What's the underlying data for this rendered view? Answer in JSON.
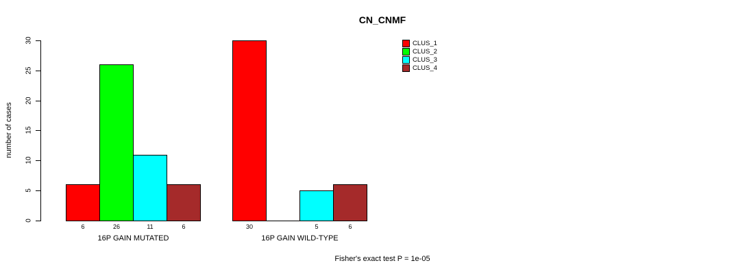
{
  "chart_data": {
    "type": "bar",
    "title": "CN_CNMF",
    "ylabel": "number of cases",
    "xlabel": "",
    "ylim": [
      0,
      30
    ],
    "yticks": [
      "0",
      "5",
      "10",
      "15",
      "20",
      "25",
      "30"
    ],
    "categories": [
      "16P GAIN MUTATED",
      "16P GAIN WILD-TYPE"
    ],
    "series": [
      {
        "name": "CLUS_1",
        "color": "#ff0000",
        "values": [
          6,
          30
        ]
      },
      {
        "name": "CLUS_2",
        "color": "#00ff00",
        "values": [
          26,
          0
        ]
      },
      {
        "name": "CLUS_3",
        "color": "#00ffff",
        "values": [
          11,
          5
        ]
      },
      {
        "name": "CLUS_4",
        "color": "#a52a2a",
        "values": [
          6,
          6
        ]
      }
    ],
    "bar_value_labels": [
      [
        "6",
        "26",
        "11",
        "6"
      ],
      [
        "30",
        "",
        "5",
        "6"
      ]
    ],
    "legend_entries": [
      "CLUS_1",
      "CLUS_2",
      "CLUS_3",
      "CLUS_4"
    ],
    "legend_position": "top-right",
    "grid": false,
    "footnote": "Fisher's exact test P = 1e-05"
  }
}
